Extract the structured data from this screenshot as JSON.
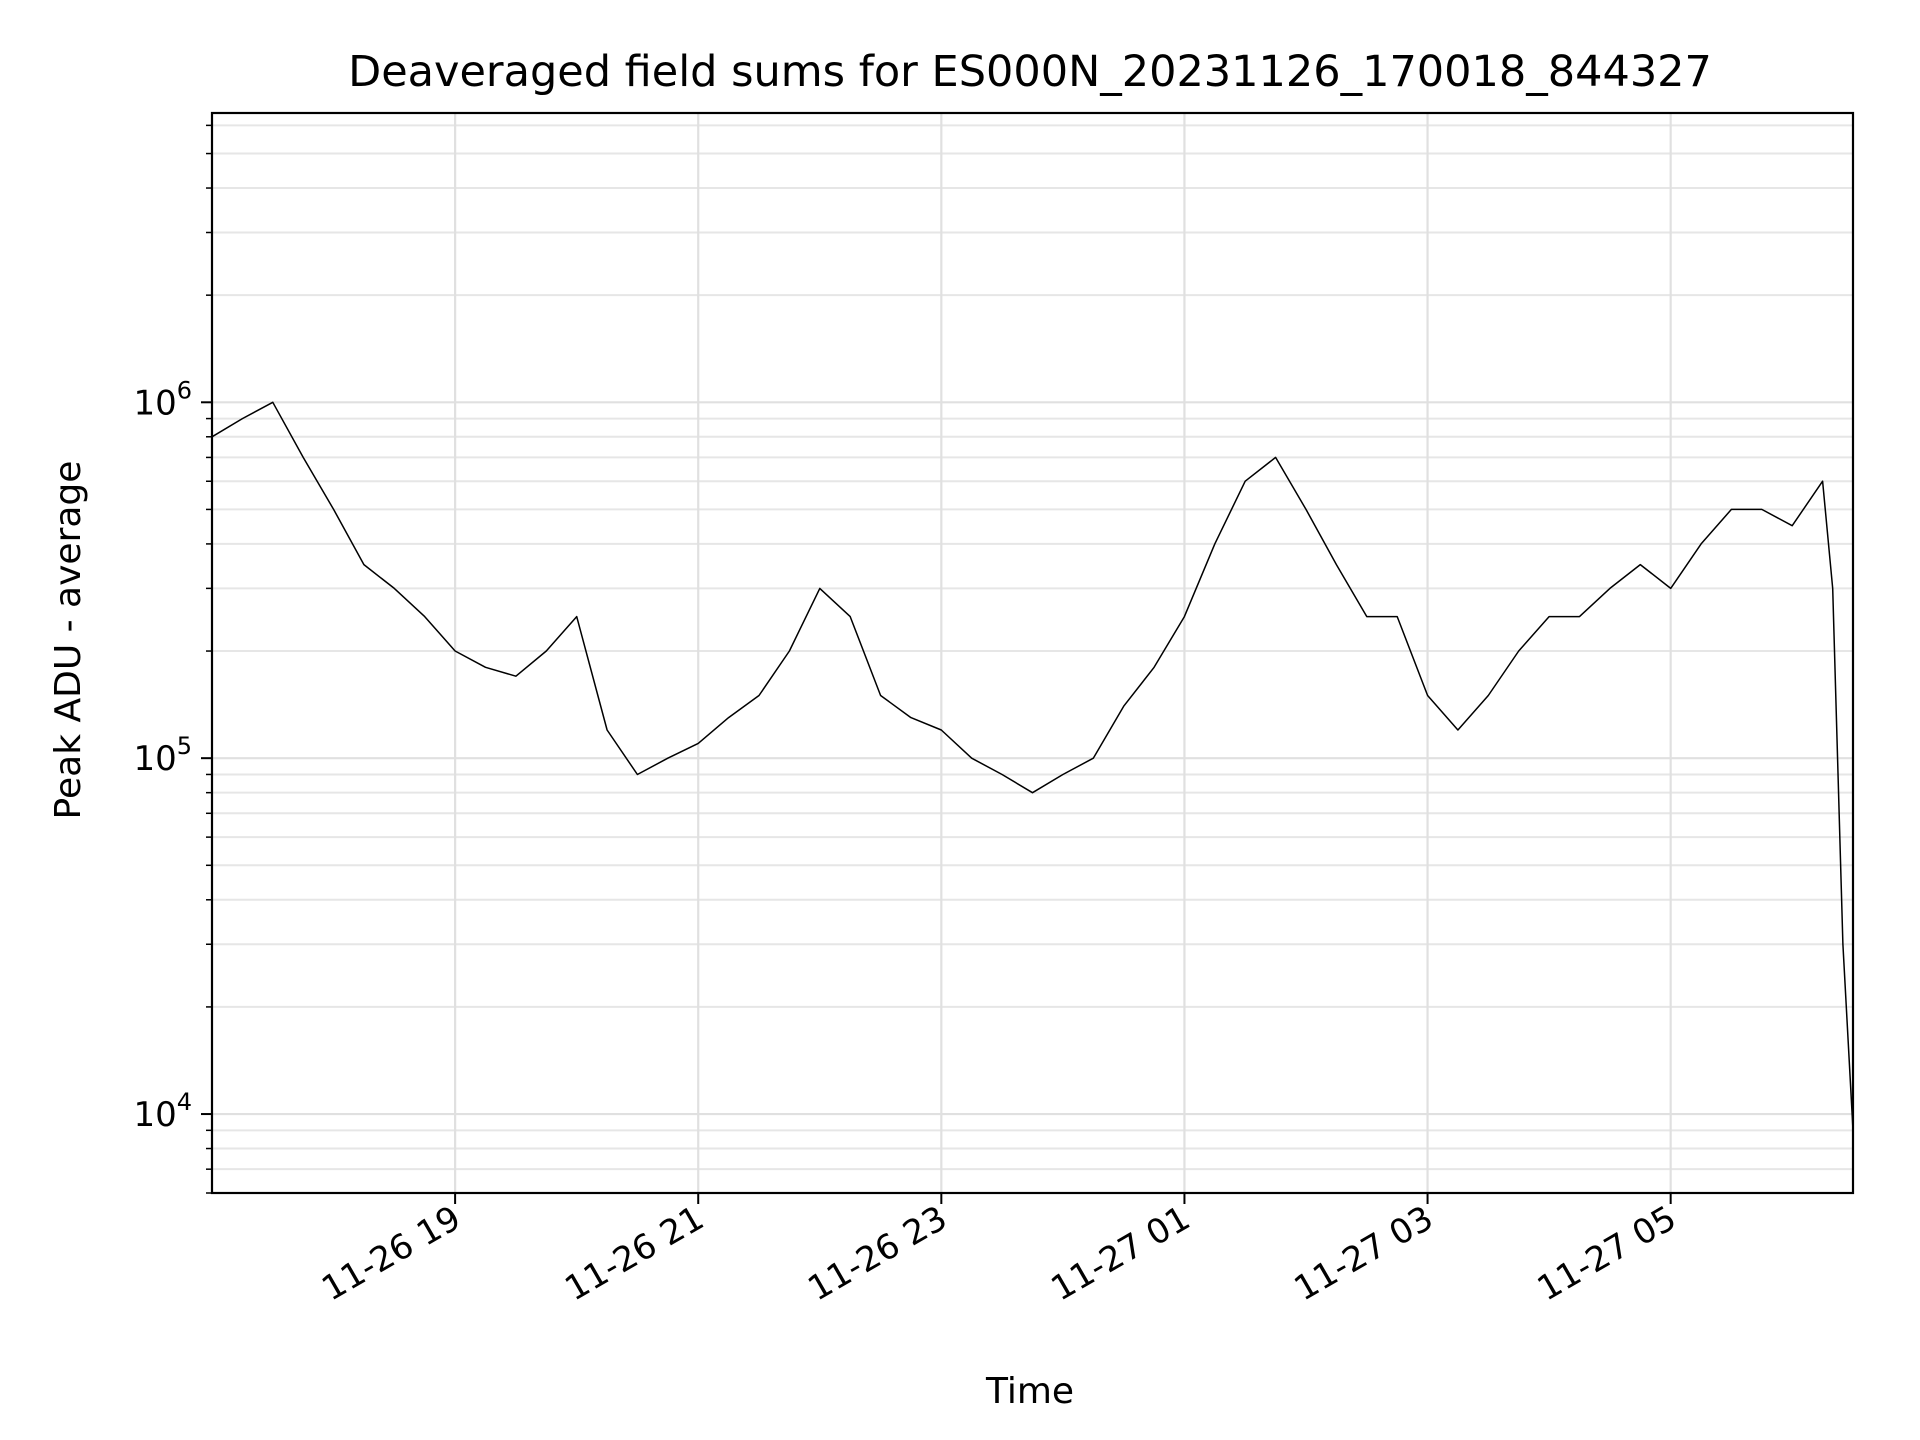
{
  "chart_data": {
    "type": "line",
    "title": "Deaveraged field sums for ES000N_20231126_170018_844327",
    "xlabel": "Time",
    "ylabel": "Peak ADU - average",
    "yscale": "log",
    "ylim": [
      6000,
      6500000
    ],
    "xlim": [
      "2023-11-26 17:00",
      "2023-11-27 06:30"
    ],
    "grid": true,
    "x_ticks": [
      {
        "value": "2023-11-26 19:00",
        "label": "11-26 19"
      },
      {
        "value": "2023-11-26 21:00",
        "label": "11-26 21"
      },
      {
        "value": "2023-11-26 23:00",
        "label": "11-26 23"
      },
      {
        "value": "2023-11-27 01:00",
        "label": "11-27 01"
      },
      {
        "value": "2023-11-27 03:00",
        "label": "11-27 03"
      },
      {
        "value": "2023-11-27 05:00",
        "label": "11-27 05"
      }
    ],
    "y_ticks": [
      {
        "value": 10000,
        "base": "10",
        "exp": "4"
      },
      {
        "value": 100000,
        "base": "10",
        "exp": "5"
      },
      {
        "value": 1000000,
        "base": "10",
        "exp": "6"
      }
    ],
    "series": [
      {
        "color": "#000000",
        "x": [
          "2023-11-26 17:00",
          "2023-11-26 17:15",
          "2023-11-26 17:30",
          "2023-11-26 17:45",
          "2023-11-26 18:00",
          "2023-11-26 18:15",
          "2023-11-26 18:30",
          "2023-11-26 18:45",
          "2023-11-26 19:00",
          "2023-11-26 19:15",
          "2023-11-26 19:30",
          "2023-11-26 19:45",
          "2023-11-26 20:00",
          "2023-11-26 20:15",
          "2023-11-26 20:30",
          "2023-11-26 20:45",
          "2023-11-26 21:00",
          "2023-11-26 21:15",
          "2023-11-26 21:30",
          "2023-11-26 21:45",
          "2023-11-26 22:00",
          "2023-11-26 22:15",
          "2023-11-26 22:30",
          "2023-11-26 22:45",
          "2023-11-26 23:00",
          "2023-11-26 23:15",
          "2023-11-26 23:30",
          "2023-11-26 23:45",
          "2023-11-27 00:00",
          "2023-11-27 00:15",
          "2023-11-27 00:30",
          "2023-11-27 00:45",
          "2023-11-27 01:00",
          "2023-11-27 01:15",
          "2023-11-27 01:30",
          "2023-11-27 01:45",
          "2023-11-27 02:00",
          "2023-11-27 02:15",
          "2023-11-27 02:30",
          "2023-11-27 02:45",
          "2023-11-27 03:00",
          "2023-11-27 03:15",
          "2023-11-27 03:30",
          "2023-11-27 03:45",
          "2023-11-27 04:00",
          "2023-11-27 04:15",
          "2023-11-27 04:30",
          "2023-11-27 04:45",
          "2023-11-27 05:00",
          "2023-11-27 05:15",
          "2023-11-27 05:30",
          "2023-11-27 05:45",
          "2023-11-27 06:00",
          "2023-11-27 06:15",
          "2023-11-27 06:20",
          "2023-11-27 06:25",
          "2023-11-27 06:30"
        ],
        "y": [
          800000,
          900000,
          1000000,
          700000,
          500000,
          350000,
          300000,
          250000,
          200000,
          180000,
          170000,
          200000,
          250000,
          120000,
          90000,
          100000,
          110000,
          130000,
          150000,
          200000,
          300000,
          250000,
          150000,
          130000,
          120000,
          100000,
          90000,
          80000,
          90000,
          100000,
          140000,
          180000,
          250000,
          400000,
          600000,
          700000,
          500000,
          350000,
          250000,
          250000,
          150000,
          120000,
          150000,
          200000,
          250000,
          250000,
          300000,
          350000,
          300000,
          400000,
          500000,
          500000,
          450000,
          600000,
          300000,
          30000,
          9000
        ]
      }
    ]
  }
}
